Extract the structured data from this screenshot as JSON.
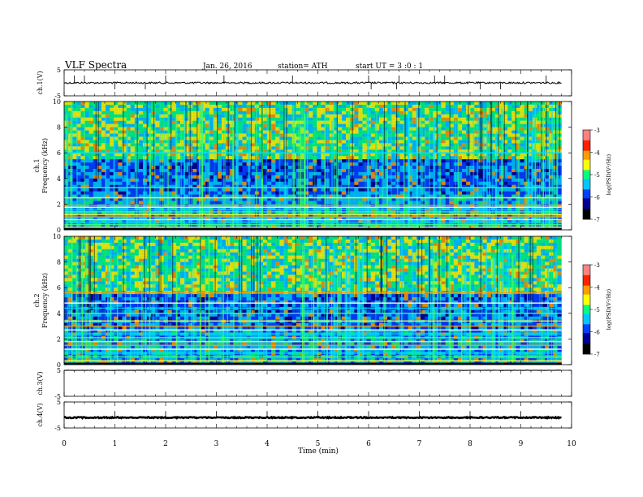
{
  "header": {
    "title": "VLF  Spectra",
    "date": "Jan. 26, 2016",
    "station": "station= ATH",
    "start": "start  UT  =   3  :0  : 1"
  },
  "colorbar": {
    "label": "log(PSD(V²/Hz)",
    "ticks": [
      "-3",
      "-4",
      "-5",
      "-6",
      "-7"
    ],
    "colors": [
      "#ff8080",
      "#ff2000",
      "#ff9c00",
      "#ffff00",
      "#00ff80",
      "#00c8ff",
      "#0040ff",
      "#000090",
      "#000000"
    ]
  },
  "chart_data": [
    {
      "type": "line",
      "id": "ch1-waveform",
      "ylabel": "ch.1(V)",
      "yticks": [
        "5",
        "-5"
      ],
      "ylim": [
        -5,
        5
      ],
      "xlim": [
        0,
        10
      ],
      "level": 0,
      "end_x": 9.8,
      "spikes_x": [
        0.2,
        0.4,
        1.0,
        1.6,
        2.0,
        3.15,
        4.5,
        6.0,
        6.05,
        6.55,
        6.6,
        7.3,
        7.5,
        8.2,
        8.6,
        9.5
      ]
    },
    {
      "type": "heatmap",
      "id": "ch1-spectrogram",
      "ylabel": "ch.1\nFrequency  (kHz)",
      "yticks": [
        "10",
        "8",
        "6",
        "4",
        "2",
        "0"
      ],
      "ylim": [
        0,
        10
      ],
      "xlim": [
        0,
        10
      ],
      "end_x": 9.8,
      "colorbar_range": [
        -7,
        -3
      ],
      "bands_khz": [
        0.2,
        0.4,
        0.6,
        0.8,
        1.0,
        1.2,
        1.4,
        1.6,
        1.75,
        1.9,
        2.5,
        3.3,
        6.0
      ]
    },
    {
      "type": "heatmap",
      "id": "ch2-spectrogram",
      "ylabel": "ch.2\nFrequency  (kHz)",
      "yticks": [
        "10",
        "8",
        "6",
        "4",
        "2",
        "0"
      ],
      "ylim": [
        0,
        10
      ],
      "xlim": [
        0,
        10
      ],
      "end_x": 9.8,
      "colorbar_range": [
        -7,
        -3
      ],
      "bands_khz": [
        0.3,
        0.6,
        0.9,
        1.2,
        1.5,
        1.8,
        2.1,
        2.4,
        2.7,
        3.0,
        3.4,
        4.0,
        4.4,
        4.8,
        5.6
      ]
    },
    {
      "type": "line",
      "id": "ch3-waveform",
      "ylabel": "ch.3(V)",
      "yticks": [
        "5",
        "-5"
      ],
      "ylim": [
        -5,
        5
      ],
      "xlim": [
        0,
        10
      ],
      "level": 5,
      "end_x": 9.8,
      "spikes_x": []
    },
    {
      "type": "line",
      "id": "ch4-waveform",
      "ylabel": "ch.4(V)",
      "yticks": [
        "5",
        "-5"
      ],
      "ylim": [
        -5,
        5
      ],
      "xlim": [
        0,
        10
      ],
      "level": -1,
      "end_x": 9.8,
      "spikes_x": [
        1.0,
        2.0,
        3.0,
        4.0,
        5.0,
        6.0,
        7.0,
        8.0,
        9.0
      ]
    }
  ],
  "xaxis": {
    "label": "Time  (min)",
    "ticks": [
      "0",
      "1",
      "2",
      "3",
      "4",
      "5",
      "6",
      "7",
      "8",
      "9",
      "10"
    ],
    "xlim": [
      0,
      10
    ]
  }
}
